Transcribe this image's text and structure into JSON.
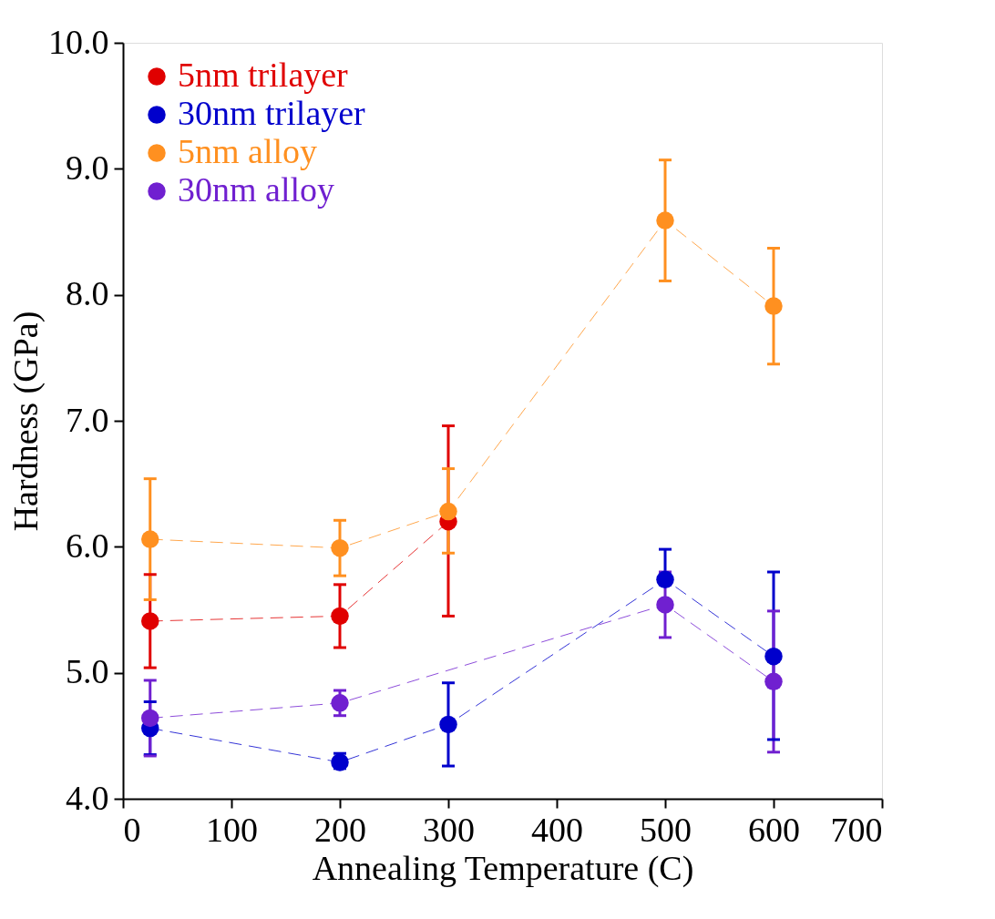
{
  "chart_data": {
    "type": "line",
    "xlabel": "Annealing Temperature (C)",
    "ylabel": "Hardness (GPa)",
    "xlim": [
      0,
      700
    ],
    "xticks": [
      0,
      100,
      200,
      300,
      400,
      500,
      600,
      700
    ],
    "ylim": [
      4.0,
      10.0
    ],
    "yticks": [
      {
        "value": 4,
        "label": "4.0"
      },
      {
        "value": 5,
        "label": "5.0"
      },
      {
        "value": 6,
        "label": "6.0"
      },
      {
        "value": 7,
        "label": "7.0"
      },
      {
        "value": 8,
        "label": "8.0"
      },
      {
        "value": 9,
        "label": "9.0"
      },
      {
        "value": 10,
        "label": "10.0"
      }
    ],
    "grid": false,
    "legend": "top left",
    "marker": "circle",
    "line_style": "dashed",
    "series": [
      {
        "name": "5nm trilayer",
        "color": "#e00000",
        "x": [
          25,
          200,
          300
        ],
        "values": [
          5.41,
          5.45,
          6.2
        ],
        "errors": [
          [
            5.04,
            5.78
          ],
          [
            5.2,
            5.7
          ],
          [
            5.45,
            6.96
          ]
        ]
      },
      {
        "name": "30nm trilayer",
        "color": "#0000cc",
        "x": [
          25,
          200,
          300,
          500,
          600
        ],
        "values": [
          4.56,
          4.29,
          4.59,
          5.74,
          5.13
        ],
        "errors": [
          [
            4.35,
            4.77
          ],
          [
            4.24,
            4.36
          ],
          [
            4.26,
            4.92
          ],
          [
            5.74,
            5.98
          ],
          [
            4.47,
            5.8
          ]
        ]
      },
      {
        "name": "5nm alloy",
        "color": "#ff9020",
        "x": [
          25,
          200,
          300,
          500,
          600
        ],
        "values": [
          6.06,
          5.99,
          6.28,
          8.59,
          7.91
        ],
        "errors": [
          [
            5.58,
            6.54
          ],
          [
            5.77,
            6.21
          ],
          [
            5.95,
            6.62
          ],
          [
            8.11,
            9.07
          ],
          [
            7.45,
            8.37
          ]
        ]
      },
      {
        "name": "30nm alloy",
        "color": "#7020d0",
        "x": [
          25,
          200,
          500,
          600
        ],
        "values": [
          4.64,
          4.76,
          5.54,
          4.93
        ],
        "errors": [
          [
            4.34,
            4.94
          ],
          [
            4.66,
            4.86
          ],
          [
            5.28,
            5.8
          ],
          [
            4.37,
            5.49
          ]
        ]
      }
    ]
  }
}
